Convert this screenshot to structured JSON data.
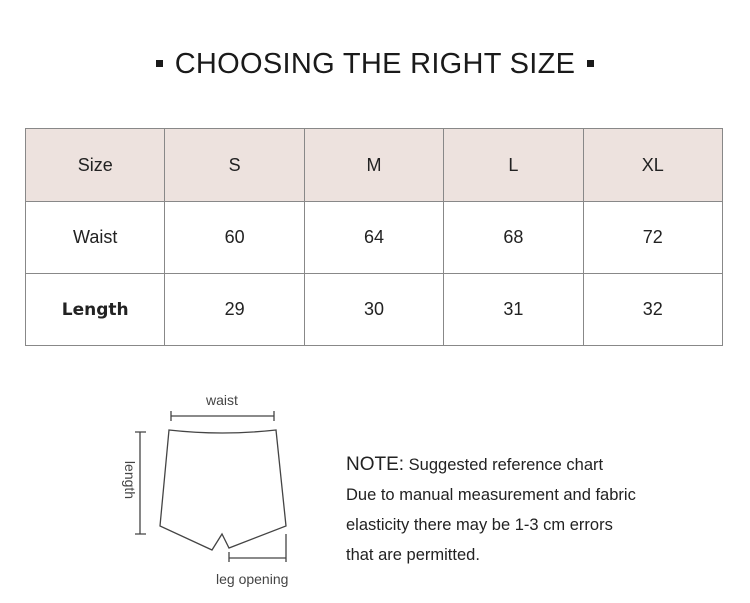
{
  "title": "CHOOSING THE RIGHT SIZE",
  "table": {
    "header": [
      "Size",
      "S",
      "M",
      "L",
      "XL"
    ],
    "rows": [
      [
        "Waist",
        "60",
        "64",
        "68",
        "72"
      ],
      [
        "Length",
        "29",
        "30",
        "31",
        "32"
      ]
    ]
  },
  "diagram": {
    "waist": "waist",
    "length": "length",
    "leg_opening": "leg opening"
  },
  "note": {
    "label": "NOTE:",
    "heading": "Suggested reference chart",
    "lines": [
      "Due to manual measurement and fabric",
      "elasticity there may be 1-3 cm errors",
      "that are permitted."
    ]
  },
  "colors": {
    "header_bg": "#ede2de"
  }
}
